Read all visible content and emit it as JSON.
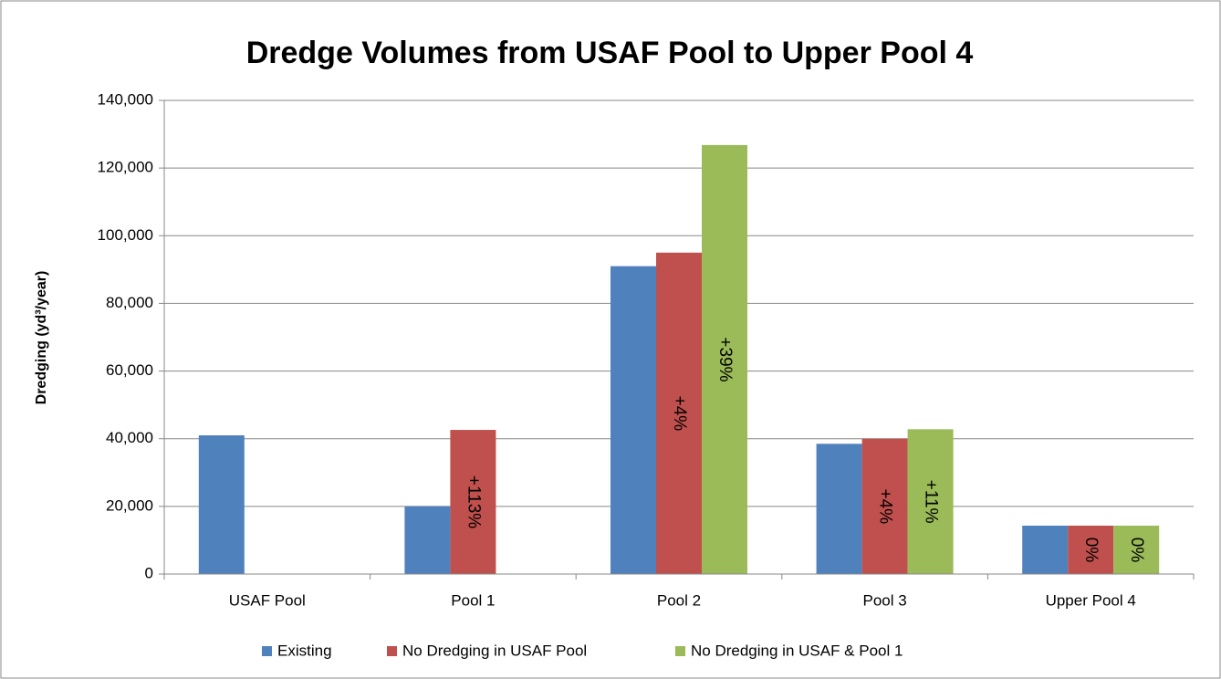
{
  "chart_data": {
    "type": "bar",
    "title": "Dredge Volumes from USAF Pool to Upper Pool 4",
    "y_label": "Dredging (yd³/year)",
    "categories": [
      "USAF Pool",
      "Pool 1",
      "Pool 2",
      "Pool 3",
      "Upper Pool 4"
    ],
    "series": [
      {
        "name": "Existing",
        "color": "#4f81bd",
        "values": [
          41000,
          20000,
          91000,
          38500,
          14300
        ]
      },
      {
        "name": "No Dredging in USAF Pool",
        "color": "#c0504d",
        "values": [
          null,
          42600,
          95000,
          40000,
          14300
        ],
        "labels": [
          null,
          "+113%",
          "+4%",
          "+4%",
          "0%"
        ]
      },
      {
        "name": "No Dredging in USAF & Pool 1",
        "color": "#9bbb59",
        "values": [
          null,
          null,
          126800,
          42800,
          14300
        ],
        "labels": [
          null,
          null,
          "+39%",
          "+11%",
          "0%"
        ]
      }
    ],
    "ylim": [
      0,
      140000
    ],
    "yticks": [
      0,
      {
        "value": 20000,
        "label": "20,000"
      },
      {
        "value": 40000,
        "label": "40,000"
      },
      {
        "value": 60000,
        "label": "60,000"
      },
      {
        "value": 80000,
        "label": "80,000"
      },
      {
        "value": 100000,
        "label": "100,000"
      },
      {
        "value": 120000,
        "label": "120,000"
      },
      {
        "value": 140000,
        "label": "140,000"
      }
    ],
    "grid": true,
    "legend": "bottom"
  }
}
